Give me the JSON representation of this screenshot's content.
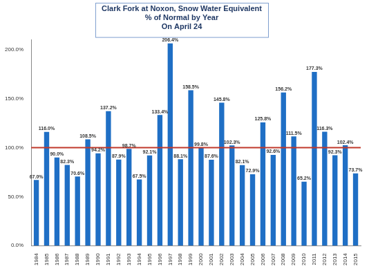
{
  "chart_data": {
    "type": "bar",
    "title": [
      "Clark Fork at Noxon, Snow Water Equivalent",
      "% of Normal by Year",
      "On April 24"
    ],
    "categories": [
      "1984",
      "1985",
      "1986",
      "1987",
      "1988",
      "1989",
      "1990",
      "1991",
      "1992",
      "1993",
      "1994",
      "1995",
      "1996",
      "1997",
      "1998",
      "1999",
      "2000",
      "2001",
      "2002",
      "2003",
      "2004",
      "2005",
      "2006",
      "2007",
      "2008",
      "2009",
      "2010",
      "2011",
      "2012",
      "2013",
      "2014",
      "2015"
    ],
    "values": [
      67.0,
      116.0,
      90.0,
      82.3,
      70.6,
      108.5,
      94.2,
      137.2,
      87.9,
      98.7,
      67.5,
      92.1,
      133.4,
      206.4,
      88.1,
      158.5,
      99.8,
      87.6,
      145.8,
      102.3,
      82.1,
      72.9,
      125.8,
      92.6,
      156.2,
      111.5,
      65.2,
      177.3,
      116.3,
      92.3,
      102.4,
      73.7
    ],
    "value_labels": [
      "67.0%",
      "116.0%",
      "90.0%",
      "82.3%",
      "70.6%",
      "108.5%",
      "94.2%",
      "137.2%",
      "87.9%",
      "98.7%",
      "67.5%",
      "92.1%",
      "133.4%",
      "206.4%",
      "88.1%",
      "158.5%",
      "99.8%",
      "87.6%",
      "145.8%",
      "102.3%",
      "82.1%",
      "72.9%",
      "125.8%",
      "92.6%",
      "156.2%",
      "111.5%",
      "65.2%",
      "177.3%",
      "116.3%",
      "92.3%",
      "102.4%",
      "73.7%"
    ],
    "color": "#1f6fc5",
    "data_labels": true,
    "ylim": [
      0,
      210
    ],
    "yticks": [
      {
        "value": 0,
        "label": "0.0%"
      },
      {
        "value": 50,
        "label": "50.0%"
      },
      {
        "value": 100,
        "label": "100.0%"
      },
      {
        "value": 150,
        "label": "150.0%"
      },
      {
        "value": 200,
        "label": "200.0%"
      }
    ],
    "reference_line": {
      "value": 100,
      "color": "#c0392b"
    },
    "grid": false
  }
}
